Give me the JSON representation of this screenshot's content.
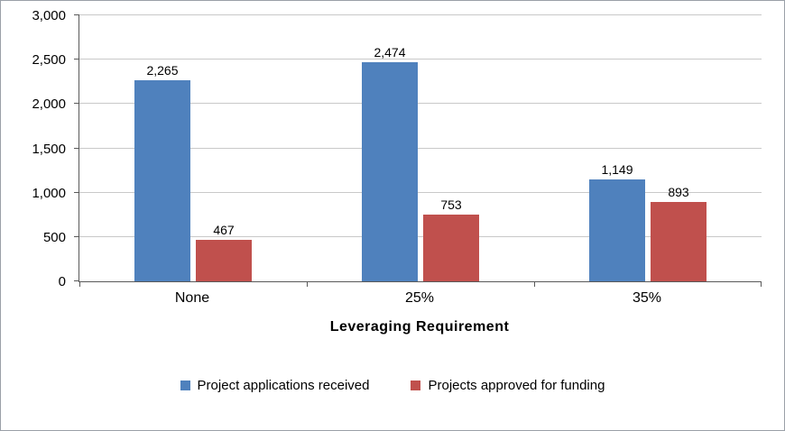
{
  "chart_data": {
    "type": "bar",
    "title": "",
    "categories": [
      "None",
      "25%",
      "35%"
    ],
    "series": [
      {
        "name": "Project  applications  received",
        "color": "#4f81bd",
        "values": [
          2265,
          2474,
          1149
        ],
        "value_labels": [
          "2,265",
          "2,474",
          "1,149"
        ]
      },
      {
        "name": "Projects approved  for funding",
        "color": "#c0504d",
        "values": [
          467,
          753,
          893
        ],
        "value_labels": [
          "467",
          "753",
          "893"
        ]
      }
    ],
    "xlabel": "Leveraging  Requirement",
    "ylabel": "",
    "ylim": [
      0,
      3000
    ],
    "yticks": [
      0,
      500,
      1000,
      1500,
      2000,
      2500,
      3000
    ],
    "ytick_labels": [
      "0",
      "500",
      "1,000",
      "1,500",
      "2,000",
      "2,500",
      "3,000"
    ],
    "grid": true,
    "legend_position": "bottom",
    "colors": {
      "gridline": "#c9c9c9",
      "axis": "#595959",
      "frame_border": "#9aa0a8"
    }
  }
}
